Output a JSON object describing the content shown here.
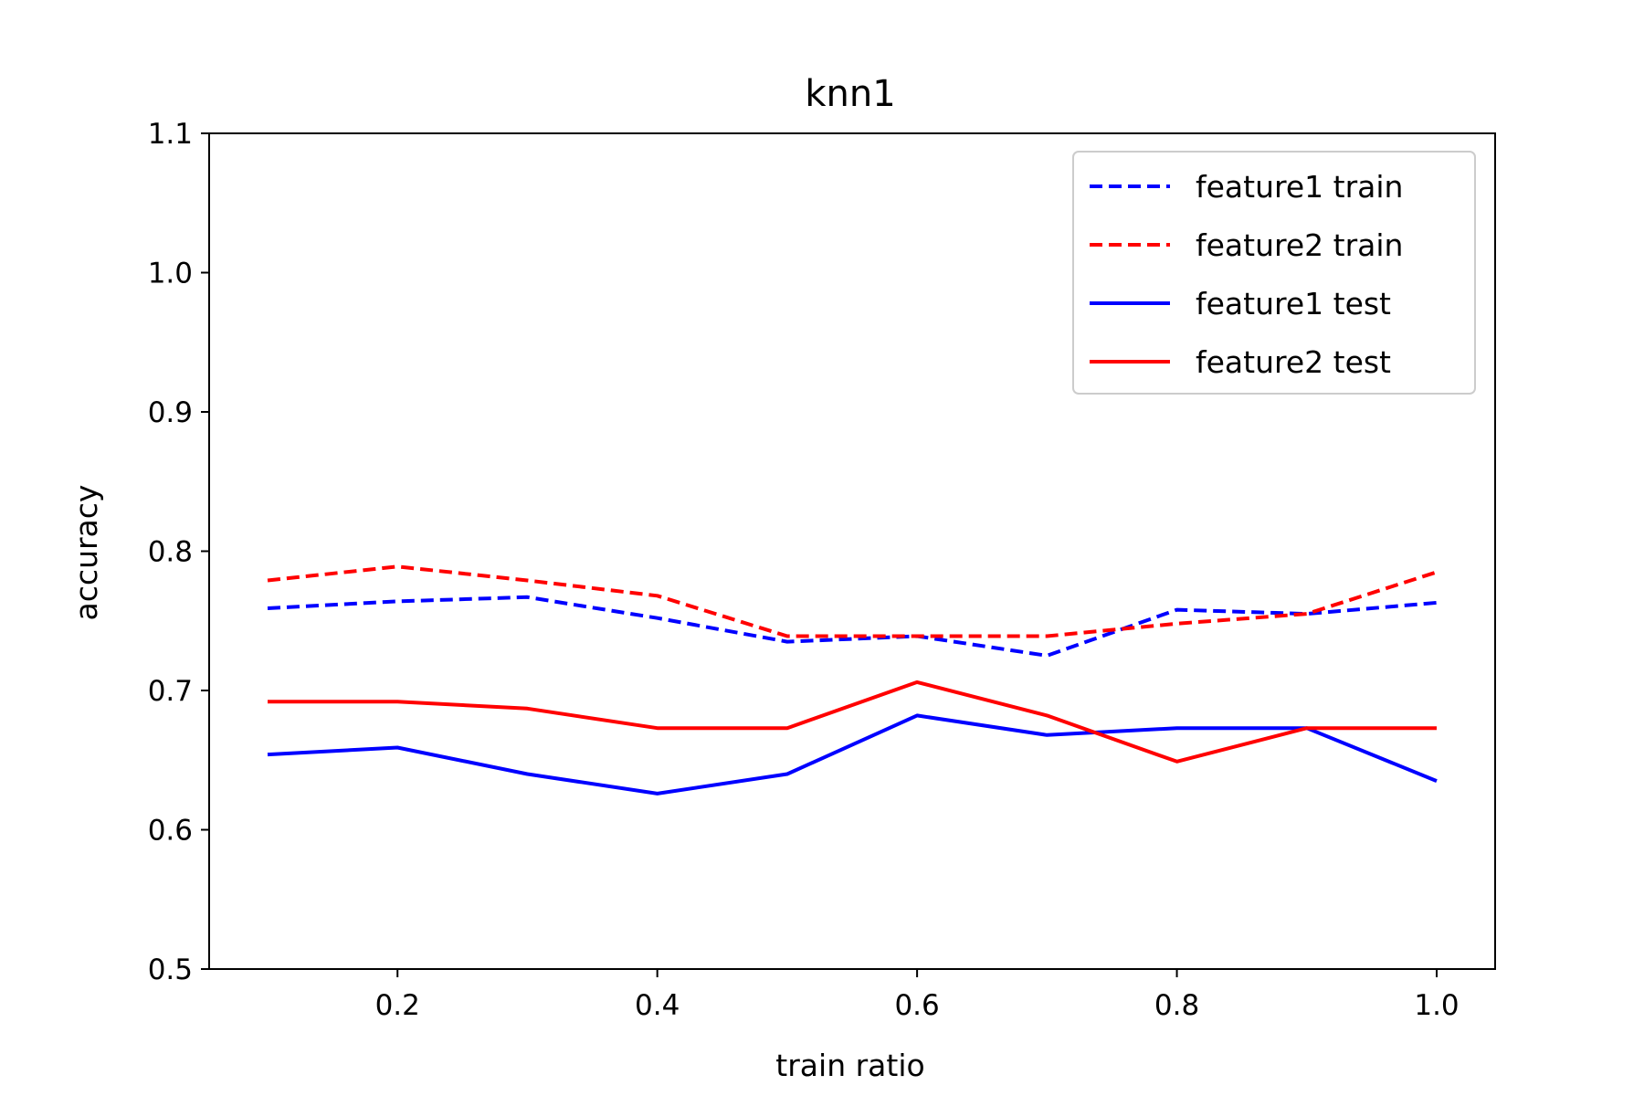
{
  "chart_data": {
    "type": "line",
    "title": "knn1",
    "xlabel": "train ratio",
    "ylabel": "accuracy",
    "xlim": [
      0.055,
      1.045
    ],
    "ylim": [
      0.5,
      1.1
    ],
    "xticks": [
      0.2,
      0.4,
      0.6,
      0.8,
      1.0
    ],
    "xtick_labels": [
      "0.2",
      "0.4",
      "0.6",
      "0.8",
      "1.0"
    ],
    "yticks": [
      0.5,
      0.6,
      0.7,
      0.8,
      0.9,
      1.0,
      1.1
    ],
    "ytick_labels": [
      "0.5",
      "0.6",
      "0.7",
      "0.8",
      "0.9",
      "1.0",
      "1.1"
    ],
    "grid": false,
    "legend_position": "top-right",
    "x": [
      0.1,
      0.2,
      0.3,
      0.4,
      0.5,
      0.6,
      0.7,
      0.8,
      0.9,
      1.0
    ],
    "series": [
      {
        "name": "feature1 train",
        "color": "#0000ff",
        "style": "dashed",
        "values": [
          0.759,
          0.764,
          0.767,
          0.752,
          0.735,
          0.739,
          0.725,
          0.758,
          0.755,
          0.763
        ]
      },
      {
        "name": "feature2 train",
        "color": "#ff0000",
        "style": "dashed",
        "values": [
          0.779,
          0.789,
          0.779,
          0.768,
          0.739,
          0.739,
          0.739,
          0.748,
          0.755,
          0.785
        ]
      },
      {
        "name": "feature1 test",
        "color": "#0000ff",
        "style": "solid",
        "values": [
          0.654,
          0.659,
          0.64,
          0.626,
          0.64,
          0.682,
          0.668,
          0.673,
          0.673,
          0.635
        ]
      },
      {
        "name": "feature2 test",
        "color": "#ff0000",
        "style": "solid",
        "values": [
          0.692,
          0.692,
          0.687,
          0.673,
          0.673,
          0.706,
          0.682,
          0.649,
          0.673,
          0.673
        ]
      }
    ]
  }
}
